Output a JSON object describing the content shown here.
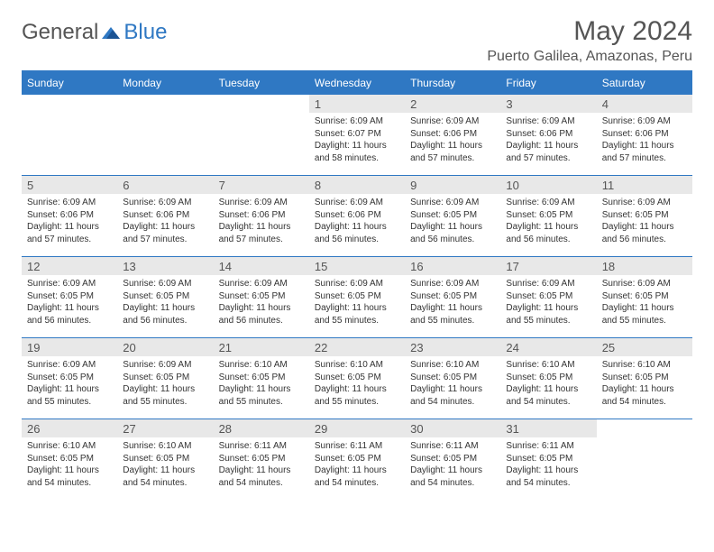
{
  "brand": {
    "general": "General",
    "blue": "Blue"
  },
  "title": "May 2024",
  "location": "Puerto Galilea, Amazonas, Peru",
  "day_headers": [
    "Sunday",
    "Monday",
    "Tuesday",
    "Wednesday",
    "Thursday",
    "Friday",
    "Saturday"
  ],
  "colors": {
    "accent": "#2f78c3",
    "daynum_bg": "#e8e8e8",
    "text": "#333333",
    "header_text": "#ffffff"
  },
  "weeks": [
    [
      {
        "day": "",
        "empty": true
      },
      {
        "day": "",
        "empty": true
      },
      {
        "day": "",
        "empty": true
      },
      {
        "day": "1",
        "sunrise": "Sunrise: 6:09 AM",
        "sunset": "Sunset: 6:07 PM",
        "daylight": "Daylight: 11 hours and 58 minutes."
      },
      {
        "day": "2",
        "sunrise": "Sunrise: 6:09 AM",
        "sunset": "Sunset: 6:06 PM",
        "daylight": "Daylight: 11 hours and 57 minutes."
      },
      {
        "day": "3",
        "sunrise": "Sunrise: 6:09 AM",
        "sunset": "Sunset: 6:06 PM",
        "daylight": "Daylight: 11 hours and 57 minutes."
      },
      {
        "day": "4",
        "sunrise": "Sunrise: 6:09 AM",
        "sunset": "Sunset: 6:06 PM",
        "daylight": "Daylight: 11 hours and 57 minutes."
      }
    ],
    [
      {
        "day": "5",
        "sunrise": "Sunrise: 6:09 AM",
        "sunset": "Sunset: 6:06 PM",
        "daylight": "Daylight: 11 hours and 57 minutes."
      },
      {
        "day": "6",
        "sunrise": "Sunrise: 6:09 AM",
        "sunset": "Sunset: 6:06 PM",
        "daylight": "Daylight: 11 hours and 57 minutes."
      },
      {
        "day": "7",
        "sunrise": "Sunrise: 6:09 AM",
        "sunset": "Sunset: 6:06 PM",
        "daylight": "Daylight: 11 hours and 57 minutes."
      },
      {
        "day": "8",
        "sunrise": "Sunrise: 6:09 AM",
        "sunset": "Sunset: 6:06 PM",
        "daylight": "Daylight: 11 hours and 56 minutes."
      },
      {
        "day": "9",
        "sunrise": "Sunrise: 6:09 AM",
        "sunset": "Sunset: 6:05 PM",
        "daylight": "Daylight: 11 hours and 56 minutes."
      },
      {
        "day": "10",
        "sunrise": "Sunrise: 6:09 AM",
        "sunset": "Sunset: 6:05 PM",
        "daylight": "Daylight: 11 hours and 56 minutes."
      },
      {
        "day": "11",
        "sunrise": "Sunrise: 6:09 AM",
        "sunset": "Sunset: 6:05 PM",
        "daylight": "Daylight: 11 hours and 56 minutes."
      }
    ],
    [
      {
        "day": "12",
        "sunrise": "Sunrise: 6:09 AM",
        "sunset": "Sunset: 6:05 PM",
        "daylight": "Daylight: 11 hours and 56 minutes."
      },
      {
        "day": "13",
        "sunrise": "Sunrise: 6:09 AM",
        "sunset": "Sunset: 6:05 PM",
        "daylight": "Daylight: 11 hours and 56 minutes."
      },
      {
        "day": "14",
        "sunrise": "Sunrise: 6:09 AM",
        "sunset": "Sunset: 6:05 PM",
        "daylight": "Daylight: 11 hours and 56 minutes."
      },
      {
        "day": "15",
        "sunrise": "Sunrise: 6:09 AM",
        "sunset": "Sunset: 6:05 PM",
        "daylight": "Daylight: 11 hours and 55 minutes."
      },
      {
        "day": "16",
        "sunrise": "Sunrise: 6:09 AM",
        "sunset": "Sunset: 6:05 PM",
        "daylight": "Daylight: 11 hours and 55 minutes."
      },
      {
        "day": "17",
        "sunrise": "Sunrise: 6:09 AM",
        "sunset": "Sunset: 6:05 PM",
        "daylight": "Daylight: 11 hours and 55 minutes."
      },
      {
        "day": "18",
        "sunrise": "Sunrise: 6:09 AM",
        "sunset": "Sunset: 6:05 PM",
        "daylight": "Daylight: 11 hours and 55 minutes."
      }
    ],
    [
      {
        "day": "19",
        "sunrise": "Sunrise: 6:09 AM",
        "sunset": "Sunset: 6:05 PM",
        "daylight": "Daylight: 11 hours and 55 minutes."
      },
      {
        "day": "20",
        "sunrise": "Sunrise: 6:09 AM",
        "sunset": "Sunset: 6:05 PM",
        "daylight": "Daylight: 11 hours and 55 minutes."
      },
      {
        "day": "21",
        "sunrise": "Sunrise: 6:10 AM",
        "sunset": "Sunset: 6:05 PM",
        "daylight": "Daylight: 11 hours and 55 minutes."
      },
      {
        "day": "22",
        "sunrise": "Sunrise: 6:10 AM",
        "sunset": "Sunset: 6:05 PM",
        "daylight": "Daylight: 11 hours and 55 minutes."
      },
      {
        "day": "23",
        "sunrise": "Sunrise: 6:10 AM",
        "sunset": "Sunset: 6:05 PM",
        "daylight": "Daylight: 11 hours and 54 minutes."
      },
      {
        "day": "24",
        "sunrise": "Sunrise: 6:10 AM",
        "sunset": "Sunset: 6:05 PM",
        "daylight": "Daylight: 11 hours and 54 minutes."
      },
      {
        "day": "25",
        "sunrise": "Sunrise: 6:10 AM",
        "sunset": "Sunset: 6:05 PM",
        "daylight": "Daylight: 11 hours and 54 minutes."
      }
    ],
    [
      {
        "day": "26",
        "sunrise": "Sunrise: 6:10 AM",
        "sunset": "Sunset: 6:05 PM",
        "daylight": "Daylight: 11 hours and 54 minutes."
      },
      {
        "day": "27",
        "sunrise": "Sunrise: 6:10 AM",
        "sunset": "Sunset: 6:05 PM",
        "daylight": "Daylight: 11 hours and 54 minutes."
      },
      {
        "day": "28",
        "sunrise": "Sunrise: 6:11 AM",
        "sunset": "Sunset: 6:05 PM",
        "daylight": "Daylight: 11 hours and 54 minutes."
      },
      {
        "day": "29",
        "sunrise": "Sunrise: 6:11 AM",
        "sunset": "Sunset: 6:05 PM",
        "daylight": "Daylight: 11 hours and 54 minutes."
      },
      {
        "day": "30",
        "sunrise": "Sunrise: 6:11 AM",
        "sunset": "Sunset: 6:05 PM",
        "daylight": "Daylight: 11 hours and 54 minutes."
      },
      {
        "day": "31",
        "sunrise": "Sunrise: 6:11 AM",
        "sunset": "Sunset: 6:05 PM",
        "daylight": "Daylight: 11 hours and 54 minutes."
      },
      {
        "day": "",
        "empty": true
      }
    ]
  ]
}
